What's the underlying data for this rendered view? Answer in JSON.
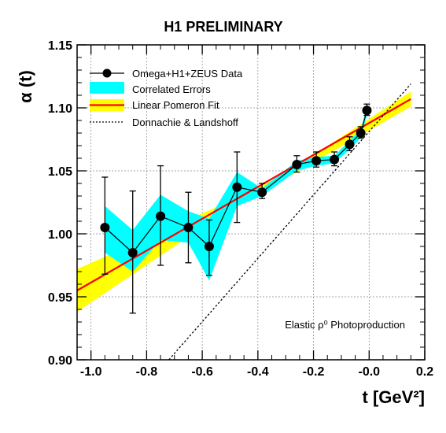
{
  "chart_data": {
    "type": "scatter",
    "title": "H1 PRELIMINARY",
    "xlabel": "t [GeV²]",
    "ylabel": "α (t)",
    "annotation": "Elastic ρ⁰ Photoproduction",
    "xlim": [
      -1.05,
      0.2
    ],
    "ylim": [
      0.9,
      1.15
    ],
    "x_ticks": [
      -1.0,
      -0.8,
      -0.6,
      -0.4,
      -0.2,
      0.0,
      0.2
    ],
    "x_tick_labels": [
      "-1.0",
      "-0.8",
      "-0.6",
      "-0.4",
      "-0.2",
      "-0.0",
      "0.2"
    ],
    "y_ticks": [
      0.9,
      0.95,
      1.0,
      1.05,
      1.1,
      1.15
    ],
    "y_tick_labels": [
      "0.90",
      "0.95",
      "1.00",
      "1.05",
      "1.10",
      "1.15"
    ],
    "grid": true,
    "legend_position": "top-left",
    "legend": [
      {
        "label": "Omega+H1+ZEUS Data",
        "marker": "circle"
      },
      {
        "label": "Correlated Errors",
        "marker": "band"
      },
      {
        "label": "Linear Pomeron Fit",
        "marker": "fit"
      },
      {
        "label": "Donnachie & Landshoff",
        "marker": "dashed"
      }
    ],
    "data": {
      "x": [
        -0.95,
        -0.85,
        -0.75,
        -0.65,
        -0.575,
        -0.475,
        -0.385,
        -0.26,
        -0.19,
        -0.125,
        -0.07,
        -0.03,
        -0.008
      ],
      "y": [
        1.005,
        0.985,
        1.014,
        1.005,
        0.99,
        1.037,
        1.033,
        1.055,
        1.058,
        1.059,
        1.071,
        1.08,
        1.098
      ],
      "err_low": [
        0.037,
        0.048,
        0.039,
        0.028,
        0.023,
        0.028,
        0.005,
        0.006,
        0.005,
        0.005,
        0.005,
        0.004,
        0.004
      ],
      "err_high": [
        0.04,
        0.049,
        0.04,
        0.028,
        0.021,
        0.028,
        0.007,
        0.007,
        0.007,
        0.006,
        0.006,
        0.005,
        0.005
      ]
    },
    "correlated_errors": {
      "low": [
        0.985,
        0.97,
        0.995,
        0.993,
        0.963,
        1.022,
        1.03,
        1.05,
        1.054,
        1.056,
        1.067,
        1.076,
        1.094
      ],
      "high": [
        1.022,
        1.003,
        1.031,
        1.018,
        1.012,
        1.049,
        1.036,
        1.058,
        1.061,
        1.062,
        1.074,
        1.083,
        1.101
      ]
    },
    "pomeron_fit": {
      "line": {
        "x": [
          -1.05,
          0.15
        ],
        "y": [
          0.955,
          1.107
        ]
      },
      "band_low": {
        "x": [
          -1.05,
          -0.5,
          -0.3,
          0.15
        ],
        "y": [
          0.938,
          1.02,
          1.044,
          1.101
        ]
      },
      "band_high": {
        "x": [
          -1.05,
          -0.5,
          -0.3,
          0.15
        ],
        "y": [
          0.972,
          1.026,
          1.048,
          1.113
        ]
      }
    },
    "donnachie_landshoff": {
      "x": [
        -0.72,
        0.15
      ],
      "y": [
        0.9,
        1.119
      ]
    },
    "colors": {
      "data": "#000000",
      "correlated_errors": "#00ffff",
      "fit_line": "#ff0000",
      "fit_band": "#ffff00",
      "dl_line": "#000000"
    }
  }
}
